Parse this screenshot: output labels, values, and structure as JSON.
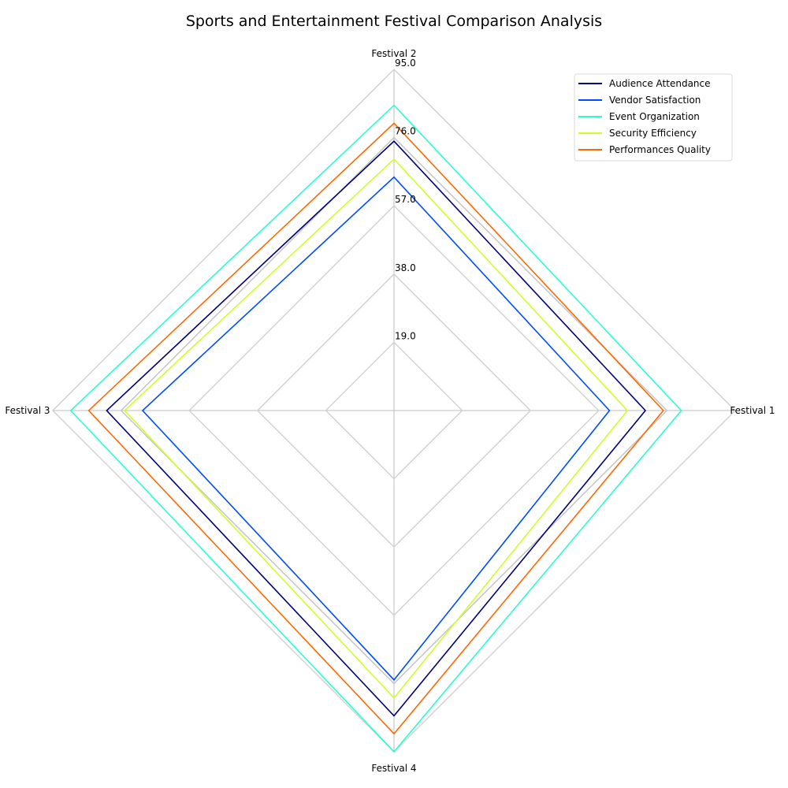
{
  "chart_data": {
    "type": "radar",
    "title": "Sports and Entertainment Festival Comparison Analysis",
    "axes": [
      "Festival 1",
      "Festival 2",
      "Festival 3",
      "Festival 4"
    ],
    "rlim": [
      0,
      95
    ],
    "ticks": [
      "19.0",
      "38.0",
      "57.0",
      "76.0",
      "95.0"
    ],
    "tick_values": [
      19,
      38,
      57,
      76,
      95
    ],
    "grid": true,
    "legend_position": "top-right",
    "series": [
      {
        "name": "Audience Attendance",
        "color": "#00007f",
        "values": [
          70,
          75,
          80,
          85
        ]
      },
      {
        "name": "Vendor Satisfaction",
        "color": "#004cff",
        "values": [
          60,
          65,
          70,
          75
        ]
      },
      {
        "name": "Event Organization",
        "color": "#29ffce",
        "values": [
          80,
          85,
          90,
          95
        ]
      },
      {
        "name": "Security Efficiency",
        "color": "#ceff29",
        "values": [
          65,
          70,
          75,
          80
        ]
      },
      {
        "name": "Performances Quality",
        "color": "#ff6800",
        "values": [
          75,
          80,
          85,
          90
        ]
      }
    ],
    "extra_series": {
      "color": "#c8c8c8",
      "values": [
        76,
        76,
        76,
        76
      ]
    }
  }
}
